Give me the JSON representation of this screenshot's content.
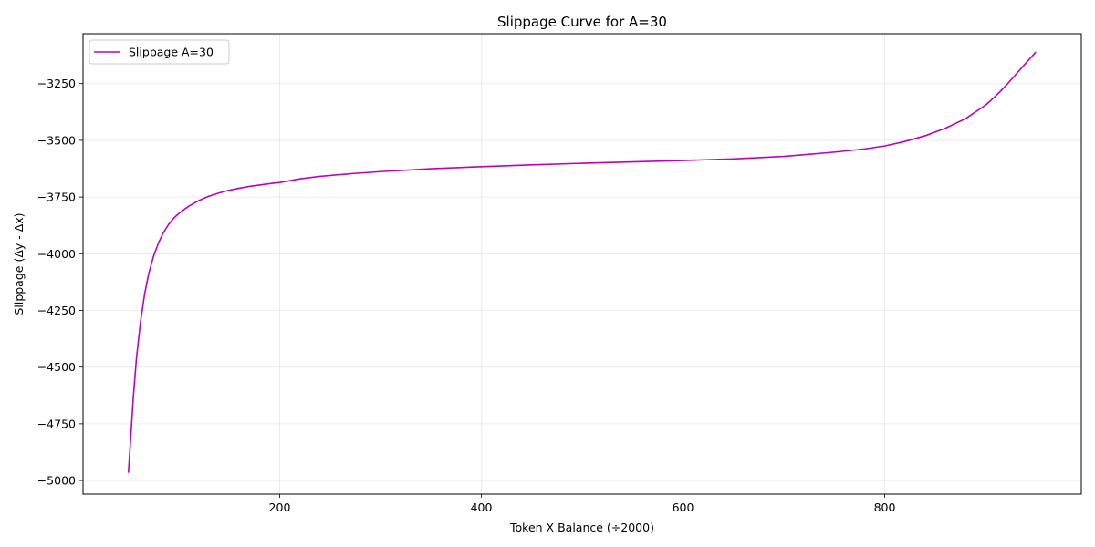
{
  "chart_data": {
    "type": "line",
    "title": "Slippage Curve for A=30",
    "xlabel": "Token X Balance (÷2000)",
    "ylabel": "Slippage (Δy - Δx)",
    "xlim": [
      5,
      995
    ],
    "ylim": [
      -5060,
      -3030
    ],
    "xticks": [
      200,
      400,
      600,
      800
    ],
    "xtick_labels": [
      "200",
      "400",
      "600",
      "800"
    ],
    "yticks": [
      -5000,
      -4750,
      -4500,
      -4250,
      -4000,
      -3750,
      -3500,
      -3250
    ],
    "ytick_labels": [
      "−5000",
      "−4750",
      "−4500",
      "−4250",
      "−4000",
      "−3750",
      "−3500",
      "−3250"
    ],
    "grid": true,
    "legend_position": "top-left",
    "series": [
      {
        "name": "Slippage A=30",
        "color": "#bf00bf",
        "x": [
          50,
          52,
          55,
          58,
          62,
          66,
          70,
          75,
          80,
          85,
          90,
          95,
          100,
          110,
          120,
          130,
          140,
          150,
          160,
          170,
          180,
          190,
          200,
          220,
          240,
          260,
          280,
          300,
          350,
          400,
          450,
          500,
          550,
          600,
          650,
          700,
          750,
          780,
          800,
          820,
          840,
          860,
          880,
          900,
          910,
          920,
          930,
          940,
          950
        ],
        "y": [
          -4966,
          -4830,
          -4625,
          -4460,
          -4300,
          -4180,
          -4090,
          -4010,
          -3950,
          -3905,
          -3870,
          -3843,
          -3822,
          -3790,
          -3765,
          -3746,
          -3732,
          -3720,
          -3711,
          -3703,
          -3697,
          -3691,
          -3686,
          -3670,
          -3659,
          -3651,
          -3644,
          -3638,
          -3625,
          -3616,
          -3608,
          -3601,
          -3595,
          -3589,
          -3582,
          -3571,
          -3552,
          -3538,
          -3525,
          -3505,
          -3480,
          -3447,
          -3405,
          -3345,
          -3305,
          -3260,
          -3210,
          -3160,
          -3110
        ]
      }
    ]
  }
}
